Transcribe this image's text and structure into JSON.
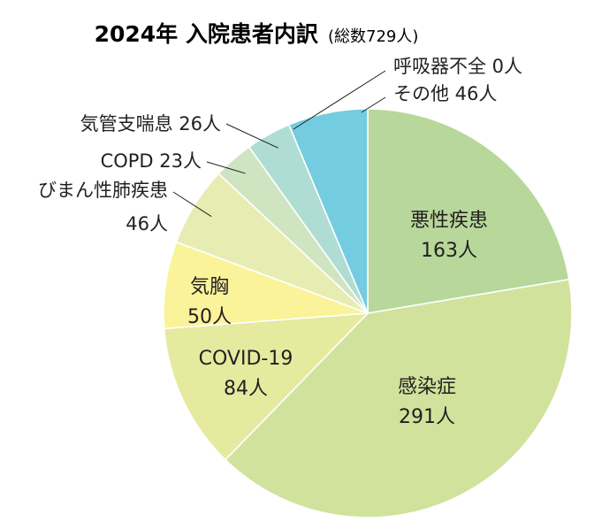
{
  "chart_data": {
    "type": "pie",
    "title": "2024年 入院患者内訳",
    "subtitle": "(総数729人)",
    "unit": "人",
    "start": "12 o'clock, clockwise",
    "slices": [
      {
        "name": "悪性疾患",
        "value": 163,
        "color": "#b7d89a",
        "label_lines": [
          "悪性疾患",
          "163人"
        ]
      },
      {
        "name": "感染症",
        "value": 291,
        "color": "#d1e29c",
        "label_lines": [
          "感染症",
          "291人"
        ]
      },
      {
        "name": "COVID-19",
        "value": 84,
        "color": "#e6ea9f",
        "label_lines": [
          "COVID-19",
          "84人"
        ]
      },
      {
        "name": "気胸",
        "value": 50,
        "color": "#fbf39a",
        "label_lines": [
          "気胸",
          "50人"
        ]
      },
      {
        "name": "びまん性肺疾患",
        "value": 46,
        "color": "#e7edb2",
        "label_lines": [
          "びまん性肺疾患",
          "46人"
        ]
      },
      {
        "name": "COPD",
        "value": 23,
        "color": "#cfe4c0",
        "label_lines": [
          "COPD 23人"
        ]
      },
      {
        "name": "気管支喘息",
        "value": 26,
        "color": "#b0ddd3",
        "label_lines": [
          "気管支喘息 26人"
        ]
      },
      {
        "name": "呼吸器不全",
        "value": 0,
        "color": "#b0ddd3",
        "label_lines": [
          "呼吸器不全 0人"
        ]
      },
      {
        "name": "その他",
        "value": 46,
        "color": "#73cce0",
        "label_lines": [
          "その他 46人"
        ]
      }
    ]
  }
}
